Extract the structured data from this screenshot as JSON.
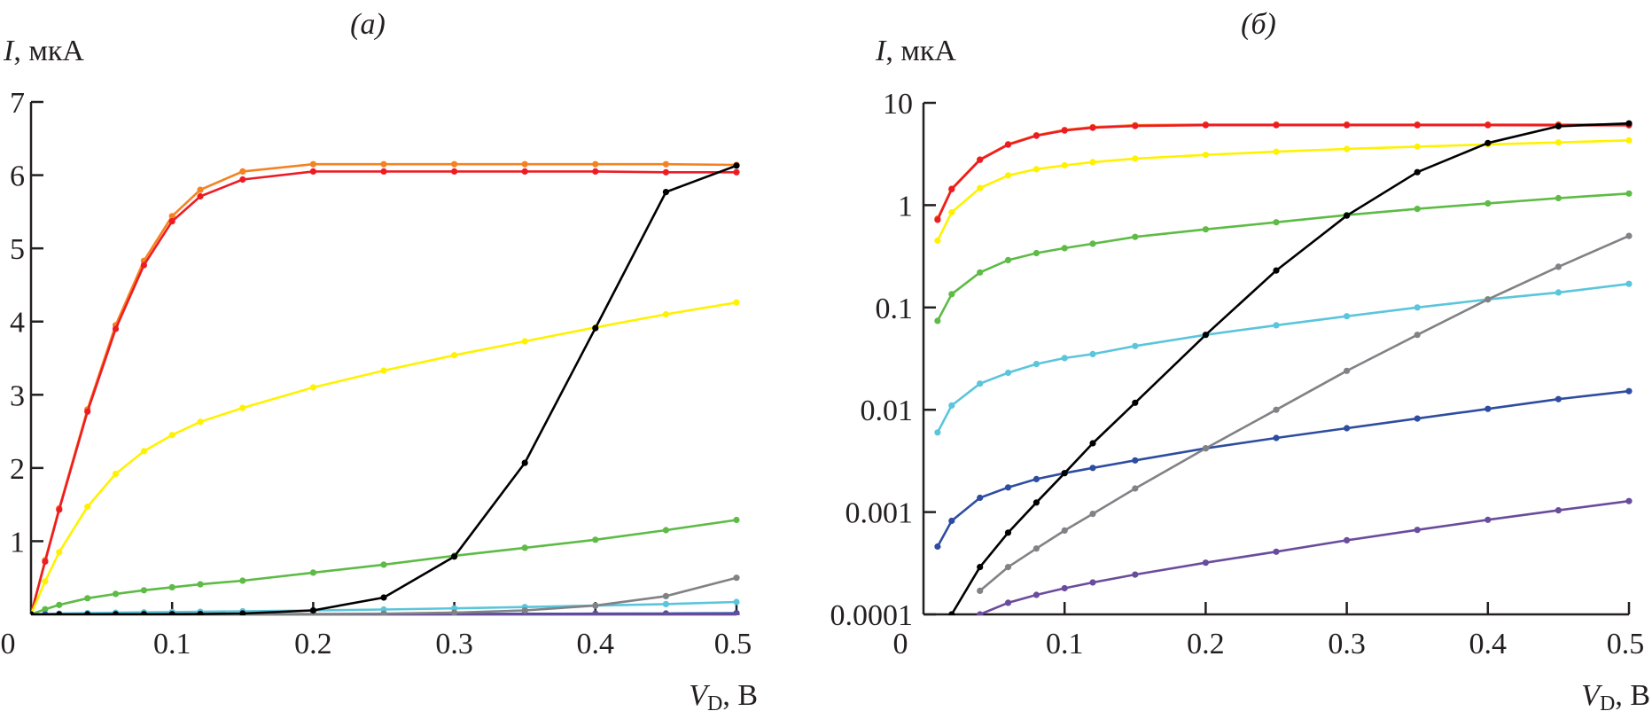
{
  "chart_data": [
    {
      "panel": "a",
      "type": "line",
      "title": "(a)",
      "ylabel_var": "I",
      "ylabel_unit": ", мкА",
      "xlabel_var": "V",
      "xlabel_sub": "D",
      "xlabel_unit": ", В",
      "yscale": "linear",
      "xlim": [
        0,
        0.5
      ],
      "ylim": [
        0,
        7
      ],
      "xticks": [
        0,
        0.1,
        0.2,
        0.3,
        0.4,
        0.5
      ],
      "xtick_labels": [
        "0",
        "0.1",
        "0.2",
        "0.3",
        "0.4",
        "0.5"
      ],
      "yticks": [
        1,
        2,
        3,
        4,
        5,
        6,
        7
      ],
      "ytick_labels": [
        "1",
        "2",
        "3",
        "4",
        "5",
        "6",
        "7"
      ],
      "grid": false,
      "legend": "none",
      "x": [
        0,
        0.01,
        0.02,
        0.04,
        0.06,
        0.08,
        0.1,
        0.12,
        0.15,
        0.2,
        0.25,
        0.3,
        0.35,
        0.4,
        0.45,
        0.5
      ],
      "series": [
        {
          "name": "orange",
          "color": "#f58220",
          "values": [
            0,
            0.74,
            1.45,
            2.8,
            3.95,
            4.83,
            5.44,
            5.8,
            6.05,
            6.15,
            6.15,
            6.15,
            6.15,
            6.15,
            6.15,
            6.14
          ]
        },
        {
          "name": "red",
          "color": "#ed1c24",
          "values": [
            0,
            0.72,
            1.43,
            2.77,
            3.9,
            4.77,
            5.37,
            5.71,
            5.94,
            6.05,
            6.05,
            6.05,
            6.05,
            6.05,
            6.04,
            6.04
          ]
        },
        {
          "name": "yellow",
          "color": "#fff200",
          "values": [
            0,
            0.45,
            0.85,
            1.47,
            1.92,
            2.23,
            2.45,
            2.63,
            2.82,
            3.1,
            3.33,
            3.54,
            3.73,
            3.92,
            4.1,
            4.26
          ]
        },
        {
          "name": "green",
          "color": "#5dbb46",
          "values": [
            0,
            0.07,
            0.13,
            0.22,
            0.28,
            0.33,
            0.37,
            0.41,
            0.46,
            0.57,
            0.68,
            0.8,
            0.91,
            1.02,
            1.15,
            1.29
          ]
        },
        {
          "name": "cyan",
          "color": "#5bc5db",
          "values": [
            0,
            0.006,
            0.011,
            0.018,
            0.023,
            0.028,
            0.032,
            0.035,
            0.042,
            0.054,
            0.067,
            0.082,
            0.1,
            0.12,
            0.14,
            0.17
          ]
        },
        {
          "name": "blue",
          "color": "#2e4da0",
          "values": [
            0,
            0.0005,
            0.0008,
            0.0014,
            0.0017,
            0.0021,
            0.0024,
            0.0027,
            0.0032,
            0.0042,
            0.0053,
            0.0066,
            0.0082,
            0.0102,
            0.0127,
            0.0152
          ]
        },
        {
          "name": "purple",
          "color": "#6a4c9c",
          "values": [
            0,
            null,
            null,
            0.0001,
            0.00013,
            0.000155,
            0.00018,
            0.000205,
            0.000245,
            0.00032,
            0.00041,
            0.00053,
            0.00067,
            0.00084,
            0.00104,
            0.00128
          ]
        },
        {
          "name": "gray",
          "color": "#808285",
          "values": [
            0,
            null,
            null,
            0.00017,
            0.00029,
            0.00044,
            0.00066,
            0.00096,
            0.0017,
            0.0042,
            0.01,
            0.024,
            0.054,
            0.12,
            0.25,
            0.5
          ]
        },
        {
          "name": "black",
          "color": "#000000",
          "values": [
            0,
            null,
            0.0001,
            0.00029,
            0.00063,
            0.00124,
            0.0024,
            0.0047,
            0.0117,
            0.054,
            0.23,
            0.79,
            2.07,
            3.91,
            5.77,
            6.13
          ]
        }
      ]
    },
    {
      "panel": "б",
      "type": "line",
      "title": "(б)",
      "ylabel_var": "I",
      "ylabel_unit": ", мкА",
      "xlabel_var": "V",
      "xlabel_sub": "D",
      "xlabel_unit": ", В",
      "yscale": "log",
      "xlim": [
        0,
        0.5
      ],
      "ylim": [
        0.0001,
        10
      ],
      "xticks": [
        0,
        0.1,
        0.2,
        0.3,
        0.4,
        0.5
      ],
      "xtick_labels": [
        "0",
        "0.1",
        "0.2",
        "0.3",
        "0.4",
        "0.5"
      ],
      "yticks": [
        0.0001,
        0.001,
        0.01,
        0.1,
        1,
        10
      ],
      "ytick_labels": [
        "0.0001",
        "0.001",
        "0.01",
        "0.1",
        "1",
        "10"
      ],
      "grid": false,
      "legend": "none",
      "x": [
        0.01,
        0.02,
        0.04,
        0.06,
        0.08,
        0.1,
        0.12,
        0.15,
        0.2,
        0.25,
        0.3,
        0.35,
        0.4,
        0.45,
        0.5
      ],
      "series": [
        {
          "name": "orange",
          "color": "#f58220",
          "values": [
            0.74,
            1.45,
            2.8,
            3.95,
            4.83,
            5.44,
            5.8,
            6.05,
            6.15,
            6.15,
            6.15,
            6.15,
            6.15,
            6.15,
            6.14
          ]
        },
        {
          "name": "red",
          "color": "#ed1c24",
          "values": [
            0.72,
            1.43,
            2.77,
            3.9,
            4.77,
            5.37,
            5.71,
            5.94,
            6.05,
            6.05,
            6.05,
            6.05,
            6.05,
            6.04,
            6.04
          ]
        },
        {
          "name": "yellow",
          "color": "#fff200",
          "values": [
            0.45,
            0.85,
            1.47,
            1.95,
            2.25,
            2.45,
            2.63,
            2.85,
            3.1,
            3.33,
            3.54,
            3.73,
            3.92,
            4.1,
            4.3
          ]
        },
        {
          "name": "green",
          "color": "#5dbb46",
          "values": [
            0.074,
            0.135,
            0.22,
            0.29,
            0.34,
            0.38,
            0.42,
            0.49,
            0.58,
            0.68,
            0.8,
            0.92,
            1.04,
            1.17,
            1.3
          ]
        },
        {
          "name": "cyan",
          "color": "#5bc5db",
          "values": [
            0.006,
            0.011,
            0.018,
            0.023,
            0.028,
            0.032,
            0.035,
            0.042,
            0.054,
            0.067,
            0.082,
            0.1,
            0.12,
            0.14,
            0.17
          ]
        },
        {
          "name": "blue",
          "color": "#2e4da0",
          "values": [
            0.00046,
            0.00082,
            0.00138,
            0.00174,
            0.0021,
            0.0024,
            0.0027,
            0.0032,
            0.0042,
            0.0053,
            0.0066,
            0.0082,
            0.0102,
            0.0127,
            0.0152
          ]
        },
        {
          "name": "purple",
          "color": "#6a4c9c",
          "values": [
            null,
            null,
            0.0001,
            0.00013,
            0.000155,
            0.00018,
            0.000205,
            0.000245,
            0.00032,
            0.00041,
            0.00053,
            0.00067,
            0.00084,
            0.00104,
            0.00128
          ]
        },
        {
          "name": "gray",
          "color": "#808285",
          "values": [
            null,
            null,
            0.00017,
            0.00029,
            0.00044,
            0.00066,
            0.00096,
            0.0017,
            0.0042,
            0.01,
            0.024,
            0.054,
            0.12,
            0.25,
            0.5
          ]
        },
        {
          "name": "black",
          "color": "#000000",
          "values": [
            null,
            0.0001,
            0.00029,
            0.00063,
            0.00124,
            0.0024,
            0.0047,
            0.0117,
            0.054,
            0.23,
            0.79,
            2.1,
            4.05,
            5.9,
            6.3
          ]
        }
      ]
    }
  ]
}
